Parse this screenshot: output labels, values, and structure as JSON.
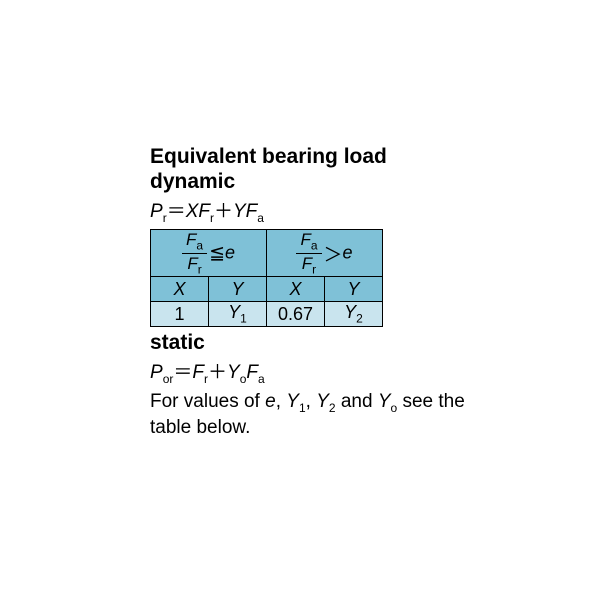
{
  "title": "Equivalent bearing load",
  "dynamic_label": "dynamic",
  "dynamic_formula": {
    "lhs_sym": "P",
    "lhs_sub": "r",
    "eq": "＝",
    "t1_sym": "XF",
    "t1_sub": "r",
    "plus": "＋",
    "t2_sym": "YF",
    "t2_sub": "a"
  },
  "table": {
    "hdr_left": {
      "num_sym": "F",
      "num_sub": "a",
      "den_sym": "F",
      "den_sub": "r",
      "op": "≦",
      "rhs": "e"
    },
    "hdr_right": {
      "num_sym": "F",
      "num_sub": "a",
      "den_sym": "F",
      "den_sub": "r",
      "op": "＞",
      "rhs": "e"
    },
    "row_labels": {
      "x1": "X",
      "y1": "Y",
      "x2": "X",
      "y2": "Y"
    },
    "row_values": {
      "v1": "1",
      "v2_sym": "Y",
      "v2_sub": "1",
      "v3": "0.67",
      "v4_sym": "Y",
      "v4_sub": "2"
    },
    "colors": {
      "header_bg": "#7fc1d7",
      "value_bg": "#c9e4ee",
      "border": "#000000"
    }
  },
  "static_label": "static",
  "static_formula": {
    "lhs_sym": "P",
    "lhs_sub": "or",
    "eq": "＝",
    "t1_sym": "F",
    "t1_sub": "r",
    "plus": "＋",
    "t2a_sym": "Y",
    "t2a_sub": "o",
    "t2b_sym": "F",
    "t2b_sub": "a"
  },
  "note_prefix": "For values of ",
  "note_e": "e",
  "note_c1": ", ",
  "note_y1_sym": "Y",
  "note_y1_sub": "1",
  "note_c2": ", ",
  "note_y2_sym": "Y",
  "note_y2_sub": "2",
  "note_and": " and ",
  "note_y0_sym": "Y",
  "note_y0_sub": "o",
  "note_suffix": " see the table below."
}
